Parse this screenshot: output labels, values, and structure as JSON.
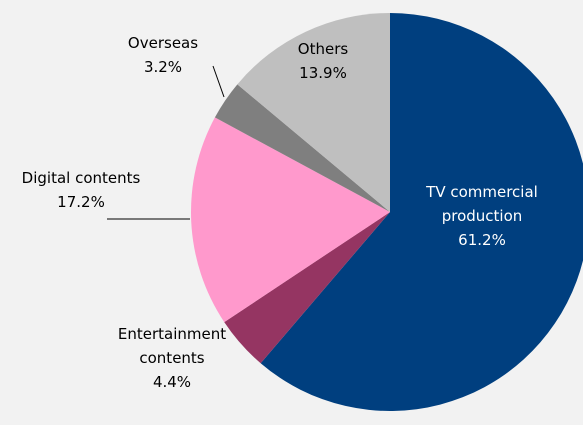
{
  "chart_data": {
    "type": "pie",
    "start_angle_deg": 0,
    "direction": "clockwise",
    "slices": [
      {
        "label": "TV commercial production",
        "label_lines": [
          "TV commercial",
          "production"
        ],
        "value": 61.2,
        "value_label": "61.2%",
        "color": "#003f7f"
      },
      {
        "label": "Entertainment contents",
        "label_lines": [
          "Entertainment",
          "contents"
        ],
        "value": 4.4,
        "value_label": "4.4%",
        "color": "#953562"
      },
      {
        "label": "Digital contents",
        "label_lines": [
          "Digital contents"
        ],
        "value": 17.2,
        "value_label": "17.2%",
        "color": "#ff99cc"
      },
      {
        "label": "Overseas",
        "label_lines": [
          "Overseas"
        ],
        "value": 3.2,
        "value_label": "3.2%",
        "color": "#7f7f7f"
      },
      {
        "label": "Others",
        "label_lines": [
          "Others"
        ],
        "value": 13.9,
        "value_label": "13.9%",
        "color": "#bfbfbf"
      }
    ],
    "background": "#f2f2f2",
    "leader_lines": true
  }
}
